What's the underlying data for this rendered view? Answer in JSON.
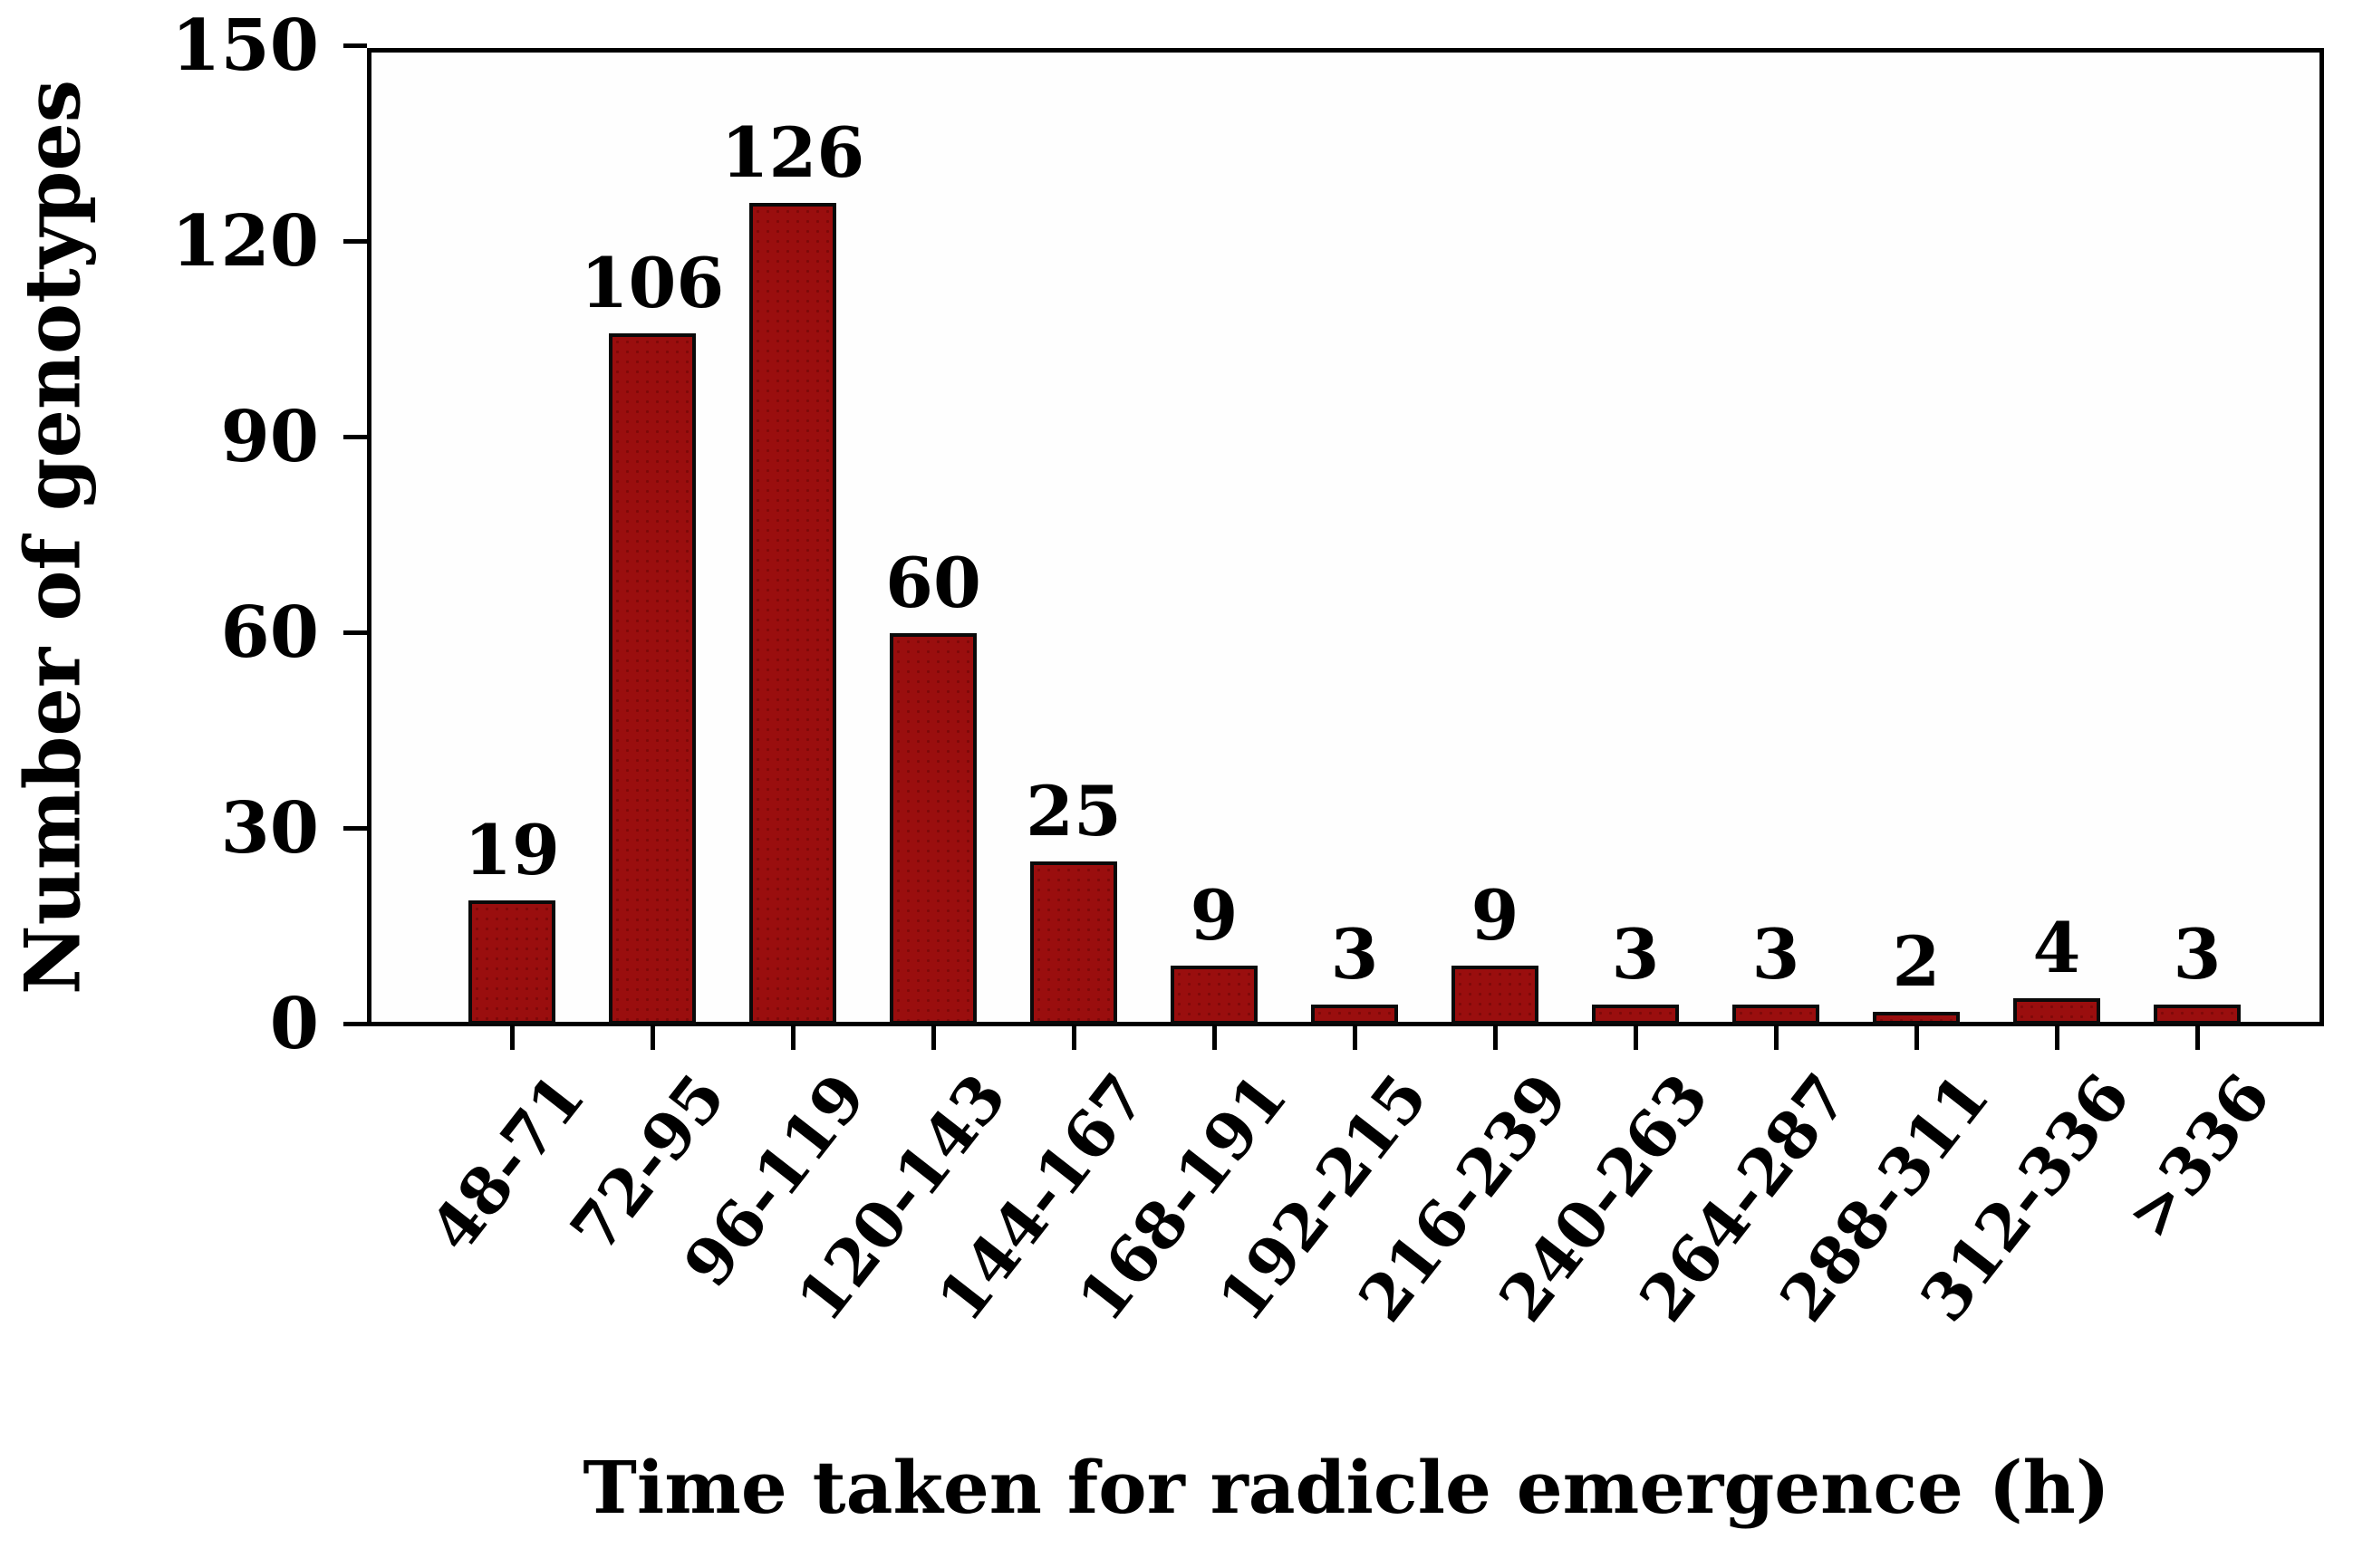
{
  "chart_data": {
    "type": "bar",
    "title": "",
    "xlabel": "Time taken for radicle emergence (h)",
    "ylabel": "Number of genotypes",
    "categories": [
      "48-71",
      "72-95",
      "96-119",
      "120-143",
      "144-167",
      "168-191",
      "192-215",
      "216-239",
      "240-263",
      "264-287",
      "288-311",
      "312-336",
      ">336"
    ],
    "values": [
      19,
      106,
      126,
      60,
      25,
      9,
      3,
      9,
      3,
      3,
      2,
      4,
      3
    ],
    "data_labels": [
      "19",
      "106",
      "126",
      "60",
      "25",
      "9",
      "3",
      "9",
      "3",
      "3",
      "2",
      "4",
      "3"
    ],
    "yticks": [
      0,
      30,
      60,
      90,
      120,
      150
    ],
    "ylim": [
      0,
      150
    ],
    "grid": false,
    "legend": null,
    "bar_color": "#9a0e0e",
    "bar_dot_color": "#7e0909",
    "bar_border_color": "#0a0a0a",
    "axis_color": "#000000",
    "text_color": "#000000",
    "background_color": "#ffffff"
  }
}
